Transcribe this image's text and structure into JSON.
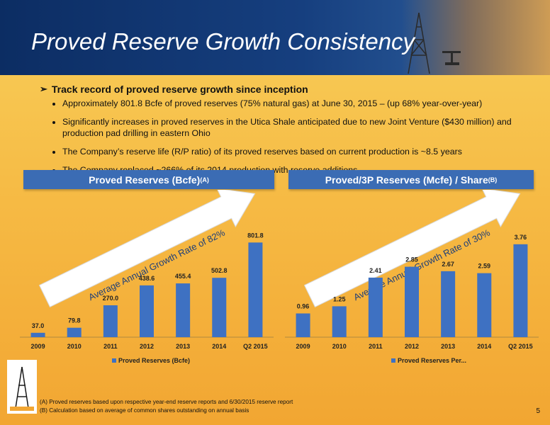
{
  "header": {
    "title": "Proved Reserve Growth Consistency"
  },
  "bullets": {
    "lead": "Track record of proved reserve growth since inception",
    "items": [
      "Approximately 801.8 Bcfe of proved reserves (75% natural gas) at June 30, 2015 – (up 68% year-over-year)",
      "Significantly increases in proved reserves in the Utica Shale anticipated due to new Joint Venture ($430 million) and production pad drilling in eastern Ohio",
      "The Company’s reserve life (R/P ratio) of its proved reserves based on current production is ~8.5 years",
      "The Company replaced ~266% of its 2014 production with reserve additions"
    ]
  },
  "bands": {
    "left": {
      "label": "Proved Reserves (Bcfe)",
      "sup": "(A)"
    },
    "right": {
      "label": "Proved/3P Reserves (Mcfe) / Share",
      "sup": "(B)"
    }
  },
  "colors": {
    "bar": "#3e71c2",
    "band": "#3b6cb4",
    "header": "#163f7f"
  },
  "chart_data": [
    {
      "type": "bar",
      "categories": [
        "2009",
        "2010",
        "2011",
        "2012",
        "2013",
        "2014",
        "Q2 2015"
      ],
      "series": [
        {
          "name": "Proved Reserves (Bcfe)",
          "values": [
            37.0,
            79.8,
            270.0,
            438.6,
            455.4,
            502.8,
            801.8
          ]
        }
      ],
      "value_labels": [
        "37.0",
        "79.8",
        "270.0",
        "438.6",
        "455.4",
        "502.8",
        "801.8"
      ],
      "annotation": "Average Annual Growth Rate of 82%",
      "ylim": [
        0,
        900
      ],
      "legend": "bottom"
    },
    {
      "type": "bar",
      "categories": [
        "2009",
        "2010",
        "2011",
        "2012",
        "2013",
        "2014",
        "Q2 2015"
      ],
      "series": [
        {
          "name": "Proved Reserves Per...",
          "values": [
            0.96,
            1.25,
            2.41,
            2.85,
            2.67,
            2.59,
            3.76
          ]
        }
      ],
      "value_labels": [
        "0.96",
        "1.25",
        "2.41",
        "2.85",
        "2.67",
        "2.59",
        "3.76"
      ],
      "annotation": "Average Annual Growth Rate of 30%",
      "ylim": [
        0,
        4.3
      ],
      "legend": "bottom"
    }
  ],
  "footnotes": [
    "(A) Proved reserves based upon respective year-end reserve reports and 6/30/2015 reserve report",
    "(B) Calculation based on average of common shares outstanding on annual basis"
  ],
  "page_number": "5"
}
